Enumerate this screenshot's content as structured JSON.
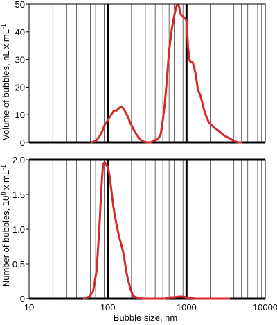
{
  "chart_data": [
    {
      "type": "line",
      "panel": "top",
      "xscale": "log",
      "xlim": [
        10,
        10000
      ],
      "ylim": [
        0,
        50
      ],
      "yticks": [
        "0",
        "10",
        "20",
        "30",
        "40",
        "50"
      ],
      "ylabel": "Volume of bubbles, nL x mL",
      "ylabel_sup": "-1",
      "xticklabels_shown": false,
      "grid": true,
      "line_color": "#d42a2a",
      "series": [
        {
          "x": [
            62,
            70,
            78,
            85,
            92,
            100,
            110,
            120,
            130,
            140,
            150,
            160,
            175,
            190,
            210,
            230,
            260,
            290,
            320,
            350,
            380,
            410,
            440,
            470,
            500,
            530,
            560,
            600,
            650,
            700,
            750,
            800,
            830,
            860,
            900,
            950,
            1000,
            1050,
            1100,
            1150,
            1200,
            1300,
            1400,
            1500,
            1700,
            1900,
            2200,
            2600,
            3000,
            3500,
            4000,
            4500,
            5000
          ],
          "y": [
            0,
            0.5,
            2,
            4,
            6.5,
            8,
            10,
            11.5,
            11.5,
            12.5,
            13,
            12,
            10,
            7.5,
            5,
            3,
            1,
            0.2,
            0,
            0,
            0.5,
            1,
            1.5,
            3,
            8,
            14,
            22,
            33,
            41,
            46,
            49.5,
            49.5,
            47,
            46,
            45.5,
            45,
            44,
            34,
            29.5,
            29,
            29,
            25,
            19,
            17,
            11,
            7.5,
            5.5,
            4,
            2.5,
            1.5,
            0.5,
            0,
            0
          ]
        }
      ]
    },
    {
      "type": "line",
      "panel": "bottom",
      "xscale": "log",
      "xlim": [
        10,
        10000
      ],
      "ylim": [
        0,
        2.0
      ],
      "yticks": [
        "0",
        "0.5",
        "1.0",
        "1.5",
        "2.0"
      ],
      "xticks": [
        "10",
        "100",
        "1000",
        "10000"
      ],
      "xlabel": "Bubble size, nm",
      "ylabel": "Number of bubbles, 10",
      "ylabel_sup1": "8",
      "ylabel_mid": " x mL",
      "ylabel_sup2": "-1",
      "grid": true,
      "line_color": "#d42a2a",
      "series": [
        {
          "x": [
            50,
            58,
            65,
            72,
            78,
            83,
            87,
            90,
            93,
            96,
            100,
            105,
            110,
            118,
            125,
            133,
            140,
            150,
            160,
            170,
            180,
            195,
            210,
            230,
            250,
            280,
            320,
            380,
            450,
            520,
            580,
            620,
            700,
            800,
            900,
            1000,
            1100,
            1300,
            1600,
            2000,
            2500,
            3000,
            3500
          ],
          "y": [
            0,
            0.03,
            0.1,
            0.4,
            1.0,
            1.6,
            1.93,
            1.96,
            1.96,
            1.92,
            1.9,
            1.78,
            1.6,
            1.32,
            1.15,
            1.0,
            0.88,
            0.76,
            0.62,
            0.42,
            0.28,
            0.13,
            0.04,
            0.02,
            0.01,
            0,
            0,
            0,
            0,
            0,
            0.01,
            0.02,
            0.02,
            0.03,
            0.03,
            0.02,
            0.01,
            0,
            0,
            0,
            0,
            0,
            0
          ]
        }
      ]
    }
  ]
}
